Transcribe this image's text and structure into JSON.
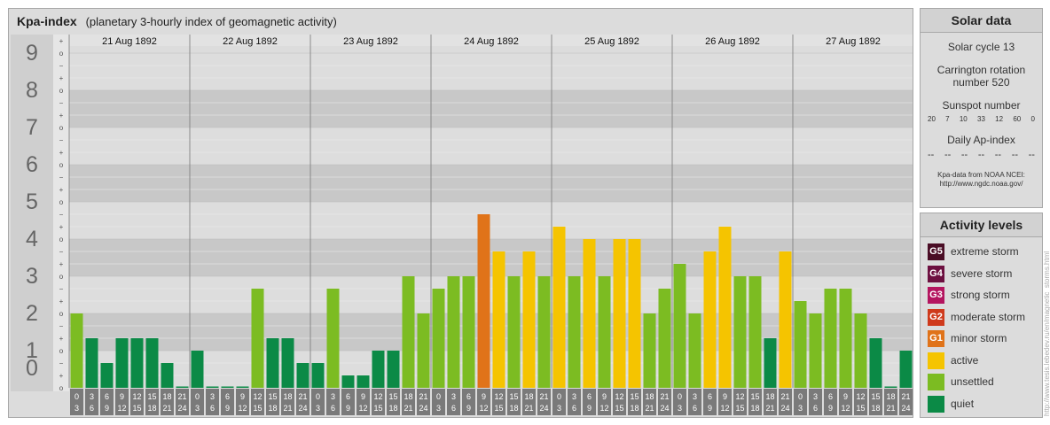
{
  "header": {
    "title": "Kpa-index",
    "subtitle": "(planetary 3-hourly index of geomagnetic activity)"
  },
  "chart_data": {
    "type": "bar",
    "title": "Kpa-index",
    "subtitle": "(planetary 3-hourly index of geomagnetic activity)",
    "ylim": [
      0,
      9
    ],
    "y_ticks": [
      "0",
      "1",
      "2",
      "3",
      "4",
      "5",
      "6",
      "7",
      "8",
      "9"
    ],
    "minor_tick_labels": [
      "o",
      "+",
      "−"
    ],
    "days": [
      "21 Aug 1892",
      "22 Aug 1892",
      "23 Aug 1892",
      "24 Aug 1892",
      "25 Aug 1892",
      "26 Aug 1892",
      "27 Aug 1892"
    ],
    "interval_start_hours": [
      "0",
      "3",
      "6",
      "9",
      "12",
      "15",
      "18",
      "21"
    ],
    "interval_end_hours": [
      "3",
      "6",
      "9",
      "12",
      "15",
      "18",
      "21",
      "24"
    ],
    "values": [
      [
        2.0,
        1.333,
        0.667,
        1.333,
        1.333,
        1.333,
        0.667,
        0.0
      ],
      [
        1.0,
        0.0,
        0.0,
        0.0,
        2.667,
        1.333,
        1.333,
        0.667
      ],
      [
        0.667,
        2.667,
        0.333,
        0.333,
        1.0,
        1.0,
        3.0,
        2.0
      ],
      [
        2.667,
        3.0,
        3.0,
        4.667,
        3.667,
        3.0,
        3.667,
        3.0
      ],
      [
        4.333,
        3.0,
        4.0,
        3.0,
        4.0,
        4.0,
        2.0,
        2.667
      ],
      [
        3.333,
        2.0,
        3.667,
        4.333,
        3.0,
        3.0,
        1.333,
        3.667
      ],
      [
        2.333,
        2.0,
        2.667,
        2.667,
        2.0,
        1.333,
        0.0,
        1.0
      ]
    ],
    "colors": {
      "G5": "#4a0d25",
      "G4": "#6d1040",
      "G3": "#b4155f",
      "G2": "#cf3a1c",
      "G1": "#e07319",
      "active": "#f5c400",
      "unsettled": "#7cbc22",
      "quiet": "#0b8a46"
    }
  },
  "solar": {
    "heading": "Solar data",
    "cycle": "Solar cycle 13",
    "carrington_line1": "Carrington rotation",
    "carrington_line2": "number 520",
    "sunspot_label": "Sunspot number",
    "sunspot_values": [
      "20",
      "7",
      "10",
      "33",
      "12",
      "60",
      "0"
    ],
    "ap_label": "Daily Ap-index",
    "ap_values": [
      "--",
      "--",
      "--",
      "--",
      "--",
      "--",
      "--"
    ],
    "note_line1": "Kpa-data from NOAA NCEI:",
    "note_line2": "http://www.ngdc.noaa.gov/"
  },
  "activity": {
    "heading": "Activity levels",
    "items": [
      {
        "badge": "G5",
        "label": "extreme storm",
        "color": "#4a0d25"
      },
      {
        "badge": "G4",
        "label": "severe storm",
        "color": "#6d1040"
      },
      {
        "badge": "G3",
        "label": "strong storm",
        "color": "#b4155f"
      },
      {
        "badge": "G2",
        "label": "moderate storm",
        "color": "#cf3a1c"
      },
      {
        "badge": "G1",
        "label": "minor storm",
        "color": "#e07319"
      },
      {
        "badge": "",
        "label": "active",
        "color": "#f5c400"
      },
      {
        "badge": "",
        "label": "unsettled",
        "color": "#7cbc22"
      },
      {
        "badge": "",
        "label": "quiet",
        "color": "#0b8a46"
      }
    ]
  },
  "watermark": "http://www.tesis.lebedev.ru/en/magnetic_storms.html"
}
